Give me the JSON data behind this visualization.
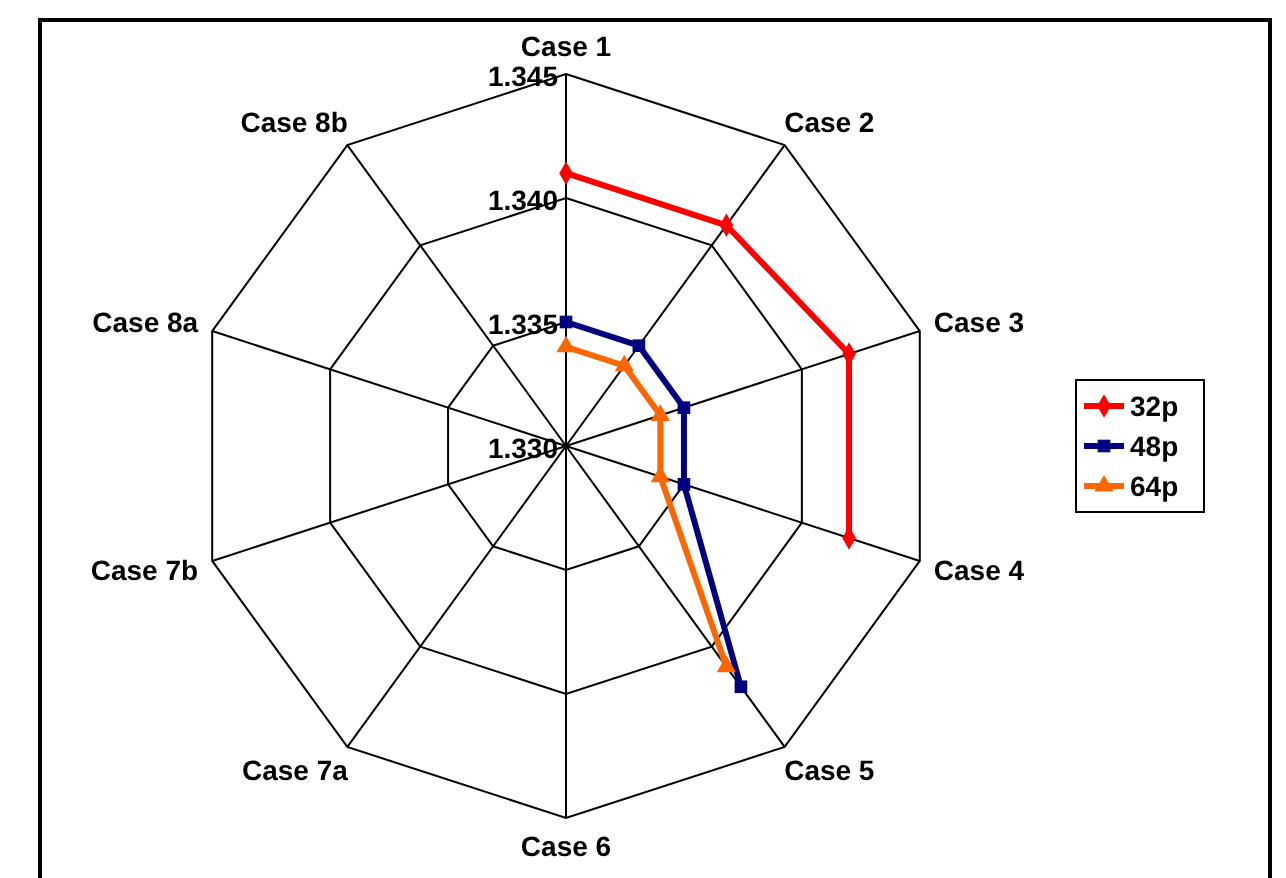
{
  "chart_data": {
    "type": "radar",
    "categories": [
      "Case 1",
      "Case 2",
      "Case 3",
      "Case 4",
      "Case 5",
      "Case 6",
      "Case 7a",
      "Case 7b",
      "Case 8a",
      "Case 8b"
    ],
    "ylim": [
      1.33,
      1.345
    ],
    "yticks": [
      {
        "value": 1.33,
        "label": "1.330"
      },
      {
        "value": 1.335,
        "label": "1.335"
      },
      {
        "value": 1.34,
        "label": "1.340"
      },
      {
        "value": 1.345,
        "label": "1.345"
      }
    ],
    "series": [
      {
        "name": "32p",
        "color": "#ff0000",
        "marker": "diamond",
        "values": [
          1.341,
          1.341,
          1.342,
          1.342,
          null,
          null,
          null,
          null,
          null,
          null
        ]
      },
      {
        "name": "48p",
        "color": "#000080",
        "marker": "square",
        "values": [
          1.335,
          1.335,
          1.335,
          1.335,
          1.342,
          null,
          null,
          null,
          null,
          null
        ]
      },
      {
        "name": "64p",
        "color": "#ff6600",
        "marker": "triangle",
        "values": [
          1.334,
          1.334,
          1.334,
          1.334,
          1.341,
          null,
          null,
          null,
          null,
          null
        ]
      }
    ],
    "legend": "right",
    "grid": true
  }
}
